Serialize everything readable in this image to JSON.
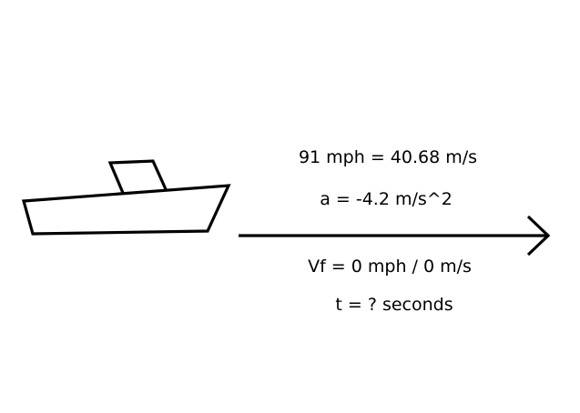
{
  "diagram": {
    "speed_text": "91 mph = 40.68 m/s",
    "acceleration_text": "a = -4.2 m/s^2",
    "final_velocity_text": "Vf = 0 mph / 0 m/s",
    "time_text": "t = ? seconds",
    "stroke_color": "#000000",
    "background_color": "#ffffff"
  }
}
